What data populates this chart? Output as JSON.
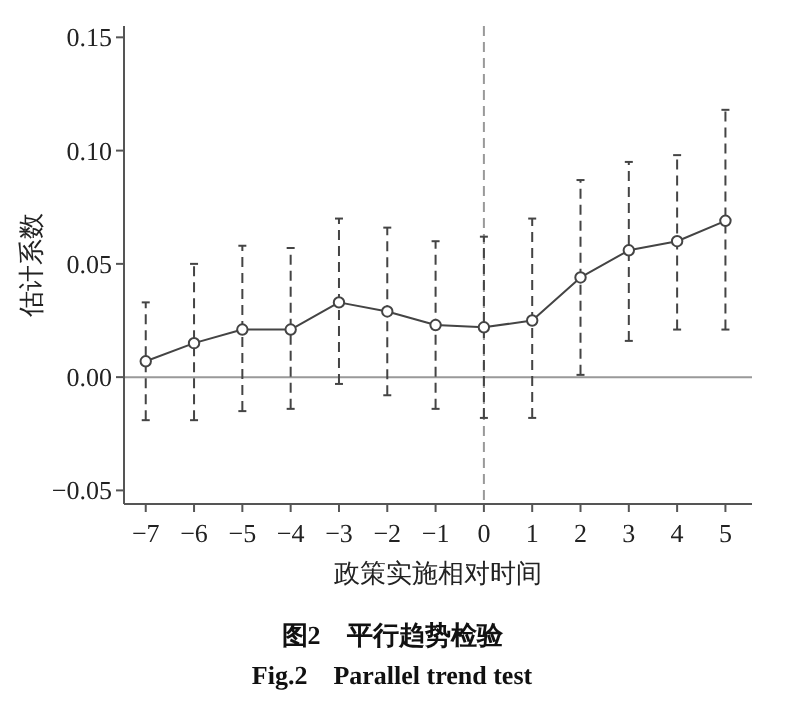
{
  "chart_data": {
    "type": "line",
    "title": "图2　平行趋势检验",
    "subtitle": "Fig.2　Parallel trend test",
    "xlabel": "政策实施相对时间",
    "ylabel": "估计系数",
    "x": [
      -7,
      -6,
      -5,
      -4,
      -3,
      -2,
      -1,
      0,
      1,
      2,
      3,
      4,
      5
    ],
    "series": [
      {
        "color": "#444444",
        "values": [
          0.007,
          0.015,
          0.021,
          0.021,
          0.033,
          0.029,
          0.023,
          0.022,
          0.025,
          0.044,
          0.056,
          0.06,
          0.069
        ],
        "errors": [
          [
            -0.019,
            0.033
          ],
          [
            -0.019,
            0.05
          ],
          [
            -0.015,
            0.058
          ],
          [
            -0.014,
            0.057
          ],
          [
            -0.003,
            0.07
          ],
          [
            -0.008,
            0.066
          ],
          [
            -0.014,
            0.06
          ],
          [
            -0.018,
            0.062
          ],
          [
            -0.018,
            0.07
          ],
          [
            0.001,
            0.087
          ],
          [
            0.016,
            0.095
          ],
          [
            0.021,
            0.098
          ],
          [
            0.021,
            0.118
          ]
        ]
      }
    ],
    "marker": "circle",
    "line_style": "solid",
    "xlim": [
      -7.45,
      5.55
    ],
    "xticks": [
      -7,
      -6,
      -5,
      -4,
      -3,
      -2,
      -1,
      0,
      1,
      2,
      3,
      4,
      5
    ],
    "ylim": [
      -0.056,
      0.155
    ],
    "yticks": [
      {
        "value": -0.05,
        "label": "−0.05"
      },
      {
        "value": 0,
        "label": "0.00"
      },
      {
        "value": 0.05,
        "label": "0.05"
      },
      {
        "value": 0.1,
        "label": "0.10"
      },
      {
        "value": 0.15,
        "label": "0.15"
      }
    ],
    "ref_lines": [
      {
        "axis": "y",
        "value": 0,
        "color": "#999999",
        "line_style": "solid"
      },
      {
        "axis": "x",
        "value": 0,
        "color": "#999999",
        "line_style": "dashed"
      }
    ],
    "grid": false
  }
}
